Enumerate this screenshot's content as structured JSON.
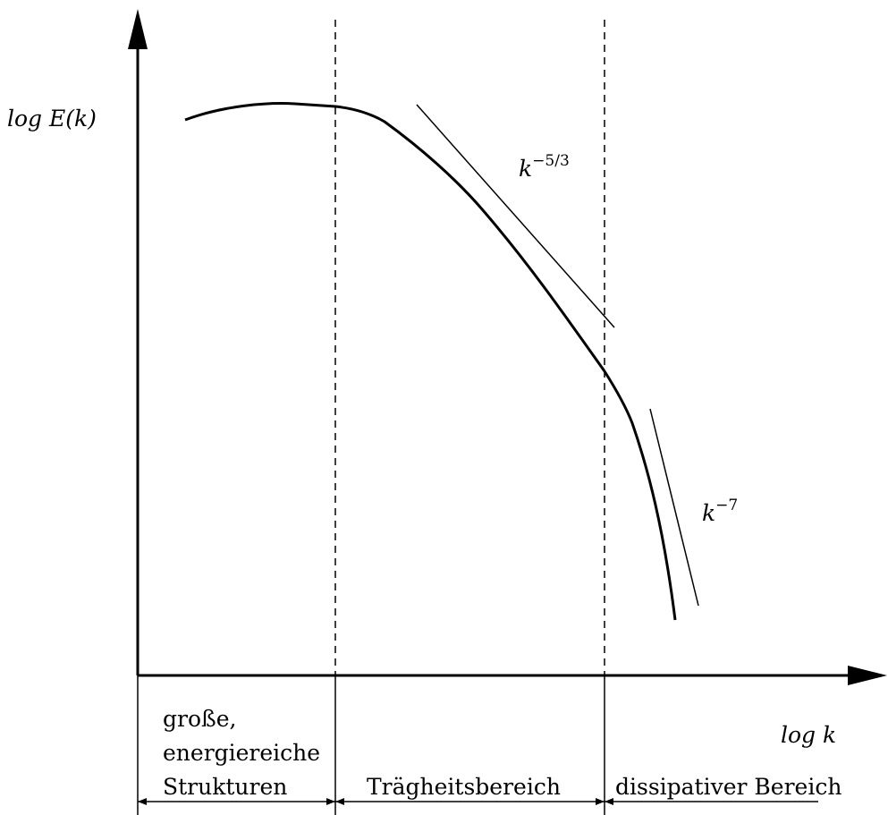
{
  "diagram": {
    "y_axis_label": "log E(k)",
    "x_axis_label": "log k",
    "slope_labels": {
      "inertial": {
        "base": "k",
        "exponent": "−5/3"
      },
      "dissipative": {
        "base": "k",
        "exponent": "−7"
      }
    },
    "regions": [
      {
        "lines": [
          "große,",
          "energiereiche",
          "Strukturen"
        ]
      },
      {
        "lines": [
          "Trägheitsbereich"
        ]
      },
      {
        "lines": [
          "dissipativer Bereich"
        ]
      }
    ]
  }
}
